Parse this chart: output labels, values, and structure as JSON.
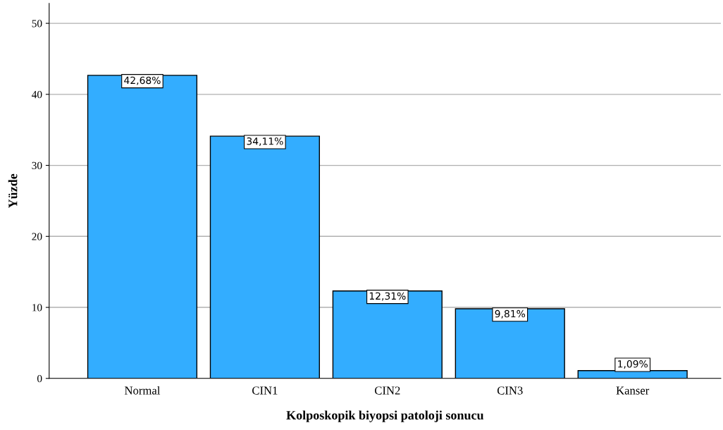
{
  "chart_data": {
    "type": "bar",
    "xlabel": "Kolposkopik biyopsi patoloji sonucu",
    "ylabel": "Yüzde",
    "categories": [
      "Normal",
      "CIN1",
      "CIN2",
      "CIN3",
      "Kanser"
    ],
    "values": [
      42.68,
      34.11,
      12.31,
      9.81,
      1.09
    ],
    "value_labels": [
      "42,68%",
      "34,11%",
      "12,31%",
      "9,81%",
      "1,09%"
    ],
    "color": "#33adff",
    "ylim": [
      0,
      52.8
    ],
    "yticks": [
      0,
      10,
      20,
      30,
      40,
      50
    ],
    "grid": "y",
    "legend": false
  }
}
